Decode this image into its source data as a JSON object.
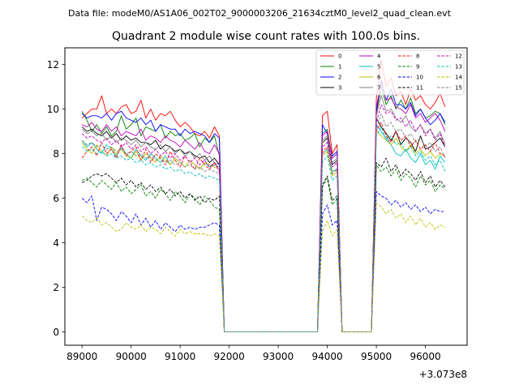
{
  "chart_data": {
    "type": "line",
    "suptitle": "Data file: modeM0/AS1A06_002T02_9000003206_21634cztM0_level2_quad_clean.evt",
    "title": "Quadrant 2 module wise count rates with 100.0s bins.",
    "xlabel": "",
    "ylabel": "",
    "x_offset_label": "+3.073e8",
    "xlim": [
      88650,
      96850
    ],
    "ylim": [
      -0.6,
      12.75
    ],
    "xticks": [
      89000,
      90000,
      91000,
      92000,
      93000,
      94000,
      95000,
      96000
    ],
    "yticks": [
      0,
      2,
      4,
      6,
      8,
      10,
      12
    ],
    "legend_position": "top-right",
    "segments": [
      {
        "x0": 89000,
        "n": 29
      },
      {
        "x0": 91900,
        "n": 20
      },
      {
        "x0": 93900,
        "n": 4
      },
      {
        "x0": 94300,
        "n": 7
      },
      {
        "x0": 95000,
        "n": 15
      }
    ],
    "series": [
      {
        "name": "0",
        "color": "#ff0000",
        "dash": false,
        "seg1": [
          9.6,
          9.8,
          10.0,
          10.0,
          10.6,
          9.8,
          10.0,
          9.8,
          10.1,
          10.2,
          9.8,
          9.9,
          10.4,
          9.6,
          10.0,
          9.5,
          9.8,
          9.7,
          9.9,
          9.5,
          9.2,
          9.4,
          9.2,
          8.9,
          8.8,
          9.0,
          8.7,
          9.2,
          8.8
        ],
        "seg2": [
          9.7,
          9.9,
          8.0,
          8.4
        ],
        "seg3": [
          10.5,
          12.2,
          11.0,
          11.4,
          10.6,
          10.8,
          10.2,
          10.9,
          10.4,
          10.6,
          10.2,
          10.0,
          10.3,
          10.7,
          10.1
        ]
      },
      {
        "name": "1",
        "color": "#008000",
        "dash": false,
        "seg1": [
          9.9,
          9.5,
          9.0,
          9.3,
          8.9,
          9.2,
          8.8,
          9.0,
          9.7,
          9.1,
          9.3,
          9.6,
          8.8,
          9.2,
          9.1,
          9.0,
          9.3,
          8.7,
          9.0,
          8.8,
          8.9,
          8.6,
          8.7,
          8.9,
          8.3,
          8.7,
          8.5,
          8.8,
          7.9
        ],
        "seg2": [
          8.9,
          9.1,
          7.8,
          8.0
        ],
        "seg3": [
          9.8,
          11.0,
          10.2,
          10.6,
          10.0,
          10.4,
          10.0,
          10.5,
          9.8,
          10.0,
          9.6,
          9.7,
          9.9,
          9.8,
          9.3
        ]
      },
      {
        "name": "2",
        "color": "#0000ff",
        "dash": false,
        "seg1": [
          9.8,
          9.6,
          9.7,
          9.7,
          9.6,
          9.8,
          9.5,
          9.8,
          9.9,
          9.6,
          9.5,
          9.4,
          9.6,
          9.3,
          9.5,
          9.0,
          9.3,
          9.2,
          9.1,
          9.1,
          8.8,
          9.1,
          8.9,
          9.0,
          8.9,
          8.8,
          8.5,
          8.9,
          8.7
        ],
        "seg2": [
          9.3,
          8.9,
          7.9,
          8.1
        ],
        "seg3": [
          9.9,
          11.3,
          10.4,
          10.9,
          10.2,
          10.2,
          10.0,
          10.3,
          9.7,
          10.0,
          9.6,
          9.3,
          9.5,
          9.8,
          9.4
        ]
      },
      {
        "name": "3",
        "color": "#000000",
        "dash": false,
        "seg1": [
          9.2,
          9.0,
          9.1,
          8.9,
          8.8,
          9.0,
          8.7,
          8.9,
          8.6,
          8.8,
          8.6,
          8.7,
          8.5,
          8.5,
          8.4,
          8.6,
          8.2,
          8.4,
          8.3,
          8.1,
          8.2,
          8.0,
          8.1,
          7.9,
          7.8,
          7.9,
          7.6,
          7.8,
          7.5
        ],
        "seg2": [
          8.5,
          8.7,
          7.5,
          7.7
        ],
        "seg3": [
          9.6,
          9.2,
          8.9,
          8.6,
          9.0,
          8.4,
          8.7,
          8.5,
          8.1,
          8.8,
          8.2,
          8.3,
          8.5,
          8.7,
          8.3
        ]
      },
      {
        "name": "4",
        "color": "#bf00bf",
        "dash": false,
        "seg1": [
          9.3,
          9.2,
          9.4,
          9.1,
          9.0,
          9.3,
          9.0,
          9.2,
          8.8,
          9.0,
          8.9,
          8.8,
          9.1,
          8.6,
          8.8,
          8.7,
          8.5,
          8.8,
          8.6,
          8.5,
          8.3,
          8.6,
          8.4,
          8.2,
          8.5,
          8.1,
          8.0,
          8.4,
          8.0
        ],
        "seg2": [
          8.8,
          9.0,
          7.8,
          8.0
        ],
        "seg3": [
          10.1,
          11.2,
          10.4,
          10.5,
          10.1,
          10.0,
          9.8,
          10.2,
          9.6,
          9.8,
          9.4,
          9.6,
          9.8,
          9.5,
          9.0
        ]
      },
      {
        "name": "5",
        "color": "#00bfbf",
        "dash": false,
        "seg1": [
          8.6,
          8.3,
          8.5,
          8.2,
          8.0,
          8.4,
          8.2,
          7.9,
          8.3,
          8.0,
          7.8,
          8.2,
          7.9,
          7.7,
          8.0,
          7.8,
          7.6,
          7.9,
          7.5,
          7.8,
          7.6,
          7.4,
          7.7,
          7.5,
          7.3,
          7.6,
          7.4,
          7.5,
          7.4
        ],
        "seg2": [
          8.0,
          8.2,
          7.2,
          7.3
        ],
        "seg3": [
          9.3,
          9.0,
          8.7,
          8.4,
          8.0,
          7.9,
          8.2,
          7.8,
          7.6,
          8.0,
          7.5,
          7.7,
          7.3,
          7.9,
          7.6
        ]
      },
      {
        "name": "6",
        "color": "#bfbf00",
        "dash": false,
        "seg1": [
          8.5,
          8.2,
          8.0,
          8.4,
          8.1,
          7.9,
          8.3,
          8.0,
          8.2,
          7.9,
          7.8,
          8.1,
          7.7,
          8.0,
          7.8,
          7.6,
          7.9,
          7.7,
          7.5,
          7.8,
          7.6,
          7.4,
          7.7,
          7.5,
          7.3,
          7.6,
          7.5,
          7.4,
          7.3
        ],
        "seg2": [
          7.9,
          8.1,
          7.0,
          7.2
        ],
        "seg3": [
          9.0,
          8.8,
          8.6,
          8.4,
          8.7,
          8.3,
          8.1,
          8.4,
          8.0,
          8.2,
          7.9,
          8.1,
          7.8,
          8.0,
          7.9
        ]
      },
      {
        "name": "7",
        "color": "#808080",
        "dash": false,
        "seg1": [
          9.1,
          8.9,
          9.0,
          8.8,
          8.9,
          8.6,
          8.8,
          8.5,
          8.7,
          8.6,
          8.4,
          8.6,
          8.3,
          8.5,
          8.3,
          8.2,
          8.4,
          8.1,
          8.3,
          8.0,
          8.2,
          7.9,
          8.1,
          7.8,
          8.0,
          7.7,
          7.9,
          7.6,
          7.5
        ],
        "seg2": [
          8.6,
          8.8,
          7.6,
          7.8
        ],
        "seg3": [
          9.7,
          10.6,
          9.9,
          10.0,
          9.6,
          9.4,
          9.7,
          9.2,
          9.0,
          9.3,
          8.9,
          9.1,
          8.7,
          9.0,
          8.4
        ]
      },
      {
        "name": "8",
        "color": "#ff0000",
        "dash": true,
        "seg1": [
          7.8,
          8.1,
          8.3,
          7.9,
          8.5,
          8.0,
          8.2,
          7.8,
          8.4,
          7.9,
          8.1,
          8.3,
          7.7,
          8.2,
          7.6,
          8.0,
          7.8,
          7.5,
          8.1,
          7.7,
          7.4,
          7.9,
          7.6,
          7.3,
          7.8,
          7.5,
          7.3,
          7.6,
          7.2
        ],
        "seg2": [
          8.1,
          8.3,
          7.1,
          7.3
        ],
        "seg3": [
          9.0,
          9.4,
          8.8,
          8.5,
          9.0,
          8.6,
          8.8,
          8.3,
          8.6,
          8.2,
          8.4,
          8.1,
          8.5,
          8.0,
          7.9
        ]
      },
      {
        "name": "9",
        "color": "#008000",
        "dash": true,
        "seg1": [
          6.8,
          6.9,
          6.7,
          6.5,
          6.8,
          6.6,
          6.4,
          6.7,
          6.3,
          6.5,
          6.2,
          6.4,
          6.6,
          6.1,
          6.3,
          6.0,
          6.4,
          6.2,
          5.9,
          6.3,
          6.1,
          5.8,
          6.2,
          6.0,
          5.7,
          6.1,
          5.9,
          5.6,
          5.5
        ],
        "seg2": [
          6.5,
          6.9,
          5.7,
          6.0
        ],
        "seg3": [
          7.5,
          7.2,
          7.4,
          7.0,
          7.3,
          6.8,
          7.1,
          6.9,
          6.5,
          7.0,
          6.6,
          6.8,
          6.3,
          6.6,
          6.4
        ]
      },
      {
        "name": "10",
        "color": "#0000ff",
        "dash": true,
        "seg1": [
          6.0,
          5.8,
          6.1,
          5.0,
          5.6,
          5.5,
          5.3,
          5.0,
          5.4,
          5.2,
          4.9,
          5.3,
          4.8,
          5.1,
          4.7,
          5.0,
          4.6,
          4.9,
          4.7,
          4.5,
          4.8,
          4.6,
          4.7,
          4.6,
          4.7,
          4.7,
          4.8,
          4.9,
          4.8
        ],
        "seg2": [
          5.3,
          5.7,
          4.8,
          5.0
        ],
        "seg3": [
          6.3,
          6.1,
          6.0,
          5.7,
          5.9,
          5.6,
          5.8,
          5.5,
          5.7,
          5.4,
          5.6,
          5.3,
          5.5,
          5.4,
          5.4
        ]
      },
      {
        "name": "11",
        "color": "#000000",
        "dash": true,
        "seg1": [
          6.7,
          6.8,
          7.0,
          7.1,
          7.0,
          7.1,
          6.9,
          6.7,
          6.9,
          6.6,
          6.8,
          6.5,
          6.7,
          6.4,
          6.6,
          6.3,
          6.5,
          6.2,
          6.4,
          6.1,
          6.3,
          6.0,
          6.2,
          5.9,
          6.1,
          5.8,
          6.0,
          5.9,
          6.1
        ],
        "seg2": [
          6.6,
          7.0,
          5.9,
          6.1
        ],
        "seg3": [
          7.6,
          7.4,
          7.8,
          7.2,
          7.5,
          7.0,
          7.3,
          7.1,
          6.8,
          7.2,
          6.7,
          7.0,
          6.5,
          6.8,
          6.5
        ]
      },
      {
        "name": "12",
        "color": "#bf00bf",
        "dash": true,
        "seg1": [
          8.9,
          8.7,
          8.8,
          8.6,
          8.5,
          8.7,
          8.4,
          8.6,
          8.3,
          8.5,
          8.2,
          8.4,
          8.1,
          8.3,
          8.0,
          8.2,
          7.9,
          8.1,
          7.8,
          8.0,
          7.7,
          7.9,
          7.6,
          7.8,
          7.5,
          7.7,
          7.4,
          7.6,
          7.3
        ],
        "seg2": [
          8.3,
          8.5,
          7.4,
          7.6
        ],
        "seg3": [
          9.4,
          10.2,
          9.8,
          9.9,
          9.5,
          9.6,
          9.2,
          9.5,
          9.0,
          9.3,
          8.8,
          9.1,
          8.6,
          8.9,
          8.3
        ]
      },
      {
        "name": "13",
        "color": "#00bfbf",
        "dash": true,
        "seg1": [
          8.3,
          8.1,
          8.2,
          8.0,
          8.1,
          7.9,
          8.0,
          7.8,
          7.9,
          7.7,
          7.8,
          7.6,
          7.7,
          7.5,
          7.6,
          7.4,
          7.5,
          7.3,
          7.4,
          7.2,
          7.3,
          7.1,
          7.2,
          7.0,
          7.1,
          6.9,
          7.0,
          6.9,
          6.8
        ],
        "seg2": [
          7.6,
          7.9,
          6.8,
          7.0
        ],
        "seg3": [
          8.8,
          9.2,
          8.6,
          8.8,
          8.4,
          8.5,
          8.1,
          8.3,
          7.9,
          8.1,
          7.7,
          7.9,
          7.5,
          7.7,
          7.2
        ]
      },
      {
        "name": "14",
        "color": "#bfbf00",
        "dash": true,
        "seg1": [
          5.2,
          5.0,
          4.9,
          5.1,
          4.8,
          4.9,
          4.7,
          4.5,
          4.6,
          4.9,
          4.7,
          4.6,
          4.8,
          4.5,
          4.7,
          4.6,
          4.4,
          4.7,
          4.5,
          4.3,
          4.6,
          4.4,
          4.5,
          4.4,
          4.4,
          4.4,
          4.3,
          4.4,
          4.3
        ],
        "seg2": [
          4.5,
          5.0,
          4.3,
          4.6
        ],
        "seg3": [
          5.8,
          5.6,
          5.3,
          5.5,
          5.1,
          5.3,
          4.9,
          5.2,
          4.8,
          5.1,
          4.7,
          4.9,
          4.6,
          4.8,
          4.7
        ]
      },
      {
        "name": "15",
        "color": "#808080",
        "dash": true,
        "seg1": [
          8.6,
          8.4,
          8.5,
          8.3,
          8.4,
          8.2,
          8.3,
          8.1,
          8.2,
          8.0,
          8.1,
          7.9,
          8.0,
          7.8,
          7.9,
          7.7,
          7.8,
          7.6,
          7.7,
          7.5,
          7.6,
          7.4,
          7.5,
          7.3,
          7.4,
          7.2,
          7.3,
          7.2,
          7.1
        ],
        "seg2": [
          8.0,
          8.2,
          7.1,
          7.3
        ],
        "seg3": [
          9.1,
          9.8,
          9.2,
          9.4,
          9.0,
          9.1,
          8.7,
          8.9,
          8.5,
          8.7,
          8.3,
          8.5,
          8.1,
          8.3,
          7.8
        ]
      }
    ]
  }
}
